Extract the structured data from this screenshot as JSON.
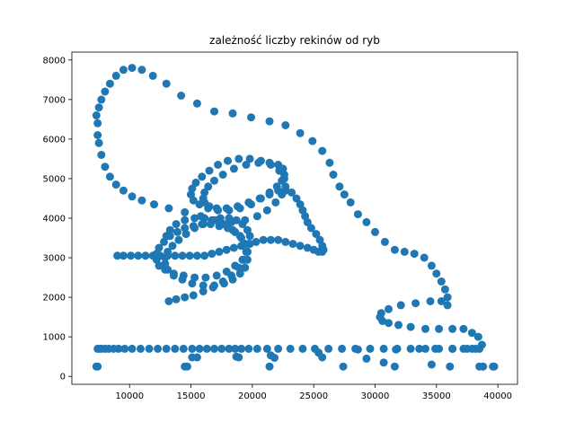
{
  "chart_data": {
    "type": "scatter",
    "title": "zależność liczby rekinów od ryb",
    "xlabel": "",
    "ylabel": "",
    "xlim": [
      5300,
      41600
    ],
    "ylim": [
      -200,
      8200
    ],
    "xticks": [
      10000,
      15000,
      20000,
      25000,
      30000,
      35000,
      40000
    ],
    "yticks": [
      0,
      1000,
      2000,
      3000,
      4000,
      5000,
      6000,
      7000,
      8000
    ],
    "grid": false,
    "marker_color": "#1f77b4",
    "series": [
      {
        "x": [
          7400,
          7300,
          7500,
          7700,
          8000,
          8400,
          8900,
          9500,
          10200,
          11000,
          11900,
          13000,
          14200,
          15500,
          16900,
          18400,
          19900,
          21400,
          22700,
          23900,
          24900,
          25700,
          26300,
          26600,
          27100,
          27500,
          28000,
          28600,
          29300,
          30000,
          30800,
          31600,
          32400,
          33200,
          34000,
          34600,
          35000,
          35400,
          35700,
          35900,
          35900,
          35400,
          34500,
          33300,
          32100,
          31100,
          30500,
          30400,
          30600,
          31100,
          31900,
          32900,
          34100,
          35200,
          36300,
          37200,
          37900,
          38400,
          38700,
          38500,
          37900,
          37200,
          36300,
          35200,
          34100,
          32900,
          31800,
          30700,
          29600,
          28400,
          27300,
          26200,
          25100,
          24100,
          23100,
          22100,
          21200,
          20400,
          19700,
          19100,
          18600,
          18100,
          17500,
          16900,
          16300,
          15700,
          15100,
          14400,
          13700,
          13000,
          12300,
          11600,
          10900,
          10200,
          9600,
          9100,
          8700,
          8300,
          8000,
          7700,
          7500,
          7400
        ],
        "y": [
          6400,
          6600,
          6800,
          7000,
          7200,
          7400,
          7600,
          7750,
          7800,
          7750,
          7600,
          7400,
          7100,
          6900,
          6700,
          6650,
          6550,
          6450,
          6350,
          6150,
          5950,
          5700,
          5400,
          5100,
          4800,
          4600,
          4400,
          4100,
          3900,
          3650,
          3400,
          3200,
          3150,
          3100,
          3000,
          2800,
          2600,
          2400,
          2200,
          2000,
          1800,
          1900,
          1900,
          1850,
          1800,
          1700,
          1600,
          1500,
          1400,
          1350,
          1300,
          1250,
          1200,
          1200,
          1200,
          1200,
          1100,
          1000,
          800,
          700,
          700,
          700,
          700,
          700,
          700,
          700,
          700,
          700,
          700,
          700,
          700,
          700,
          700,
          700,
          700,
          700,
          700,
          700,
          700,
          700,
          700,
          700,
          700,
          700,
          700,
          700,
          700,
          700,
          700,
          700,
          700,
          700,
          700,
          700,
          700,
          700,
          700,
          700,
          700,
          700,
          700,
          700
        ]
      },
      {
        "x": [
          7400,
          7500,
          7700,
          8000,
          8400,
          8900,
          9500,
          10200,
          11000,
          12000,
          13200,
          14500,
          15800,
          17100,
          18300,
          19400,
          20400,
          21200,
          21900,
          22400,
          22700,
          22600,
          22200,
          21500,
          20700,
          19800,
          18900,
          18000,
          17200,
          16500,
          15900,
          15400,
          15100,
          15000,
          15200,
          15700,
          16400,
          17200,
          18100,
          19000,
          19900,
          20700,
          21400,
          22000,
          22400,
          22600,
          22500,
          22100,
          21400,
          20500,
          19500,
          18500,
          17600,
          16900,
          16400,
          16100,
          16000,
          16100,
          16500,
          17100,
          17900,
          18800,
          19700,
          20600,
          21400,
          22100,
          22700,
          23200,
          23600,
          23900,
          24100,
          24300,
          24500,
          24800,
          25200,
          25500,
          25700,
          25800,
          25700,
          25400,
          25000,
          24500,
          23900,
          23300,
          22700,
          22100,
          21500,
          20900,
          20300,
          19700,
          19100,
          18500,
          17900,
          17300,
          16700,
          16100,
          15500,
          14900,
          14300,
          13700,
          13100,
          12500,
          11900,
          11300,
          10700,
          10100,
          9500,
          9000
        ],
        "y": [
          6100,
          5900,
          5600,
          5300,
          5050,
          4850,
          4700,
          4550,
          4450,
          4350,
          4250,
          4150,
          4050,
          3950,
          3900,
          3950,
          4050,
          4200,
          4400,
          4600,
          4800,
          5000,
          5200,
          5350,
          5450,
          5500,
          5500,
          5450,
          5350,
          5200,
          5050,
          4900,
          4750,
          4600,
          4450,
          4350,
          4250,
          4200,
          4200,
          4250,
          4350,
          4500,
          4650,
          4800,
          4950,
          5100,
          5250,
          5350,
          5400,
          5400,
          5350,
          5250,
          5100,
          4950,
          4800,
          4650,
          4500,
          4400,
          4300,
          4250,
          4250,
          4300,
          4400,
          4500,
          4600,
          4700,
          4700,
          4650,
          4500,
          4350,
          4200,
          4050,
          3900,
          3750,
          3600,
          3450,
          3300,
          3200,
          3150,
          3150,
          3200,
          3250,
          3300,
          3350,
          3400,
          3450,
          3450,
          3450,
          3400,
          3350,
          3300,
          3250,
          3200,
          3150,
          3100,
          3050,
          3050,
          3050,
          3050,
          3050,
          3050,
          3050,
          3050,
          3050,
          3050,
          3050,
          3050,
          3050
        ]
      },
      {
        "x": [
          13200,
          13800,
          14500,
          15200,
          16000,
          16800,
          17600,
          18300,
          18900,
          19300,
          19500,
          19400,
          19100,
          18600,
          18000,
          17300,
          16600,
          15900,
          15200,
          14500,
          13900,
          13300,
          12800,
          12400,
          12200,
          12200,
          12400,
          12900,
          13600,
          14400,
          15300,
          16200,
          17100,
          17900,
          18600,
          19200,
          19600,
          19800,
          19800,
          19600,
          19200,
          18700,
          18100,
          17400,
          16700,
          16000,
          15300,
          14600,
          14000,
          13500,
          13100,
          12900,
          12900,
          13100,
          13600,
          14300,
          15100,
          16000,
          16900,
          17700,
          18400,
          19000,
          19400,
          19600,
          19600,
          19400,
          19000,
          18400,
          17700,
          16900,
          16100,
          15300,
          14500,
          13800,
          13300,
          13000
        ],
        "y": [
          1900,
          1950,
          2000,
          2050,
          2150,
          2250,
          2400,
          2550,
          2750,
          2950,
          3150,
          3350,
          3500,
          3650,
          3750,
          3800,
          3850,
          3850,
          3800,
          3750,
          3650,
          3550,
          3400,
          3250,
          3100,
          2950,
          2800,
          2700,
          2600,
          2550,
          2500,
          2500,
          2550,
          2650,
          2800,
          2950,
          3150,
          3350,
          3550,
          3700,
          3850,
          3950,
          4000,
          4000,
          3950,
          3850,
          3750,
          3600,
          3450,
          3300,
          3150,
          3000,
          2850,
          2700,
          2550,
          2450,
          2350,
          2300,
          2300,
          2350,
          2450,
          2600,
          2750,
          2950,
          3150,
          3350,
          3550,
          3700,
          3850,
          3950,
          4000,
          4000,
          3950,
          3850,
          3700,
          3550
        ]
      },
      {
        "x": [
          7300,
          7400,
          14500,
          14700,
          15100,
          15500,
          18700,
          18900,
          21400,
          21500,
          21800,
          25400,
          25700,
          27400,
          28600,
          29300,
          30700,
          31600,
          31700,
          33600,
          34600,
          34900,
          36100,
          36300,
          37500,
          38200,
          38500,
          38800,
          39600,
          39700
        ],
        "y": [
          250,
          250,
          250,
          250,
          480,
          480,
          500,
          480,
          250,
          530,
          470,
          600,
          480,
          250,
          680,
          450,
          350,
          250,
          680,
          700,
          300,
          700,
          250,
          700,
          700,
          700,
          250,
          250,
          250,
          250
        ]
      }
    ]
  }
}
